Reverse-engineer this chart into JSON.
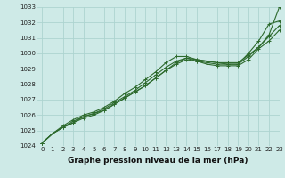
{
  "xlabel": "Graphe pression niveau de la mer (hPa)",
  "x": [
    0,
    1,
    2,
    3,
    4,
    5,
    6,
    7,
    8,
    9,
    10,
    11,
    12,
    13,
    14,
    15,
    16,
    17,
    18,
    19,
    20,
    21,
    22,
    23
  ],
  "series": [
    [
      1024.2,
      1024.8,
      1025.2,
      1025.5,
      1025.8,
      1026.0,
      1026.3,
      1026.7,
      1027.1,
      1027.5,
      1027.9,
      1028.4,
      1028.9,
      1029.4,
      1029.7,
      1029.6,
      1029.5,
      1029.4,
      1029.4,
      1029.4,
      1029.9,
      1030.4,
      1031.2,
      1033.0
    ],
    [
      1024.2,
      1024.8,
      1025.3,
      1025.7,
      1026.0,
      1026.2,
      1026.5,
      1026.9,
      1027.4,
      1027.8,
      1028.3,
      1028.8,
      1029.4,
      1029.8,
      1029.8,
      1029.6,
      1029.5,
      1029.4,
      1029.3,
      1029.3,
      1030.0,
      1030.8,
      1031.9,
      1032.1
    ],
    [
      1024.2,
      1024.8,
      1025.2,
      1025.6,
      1025.9,
      1026.1,
      1026.4,
      1026.8,
      1027.2,
      1027.6,
      1028.1,
      1028.6,
      1029.1,
      1029.5,
      1029.7,
      1029.5,
      1029.4,
      1029.3,
      1029.3,
      1029.3,
      1029.8,
      1030.4,
      1031.1,
      1031.8
    ],
    [
      1024.2,
      1024.8,
      1025.2,
      1025.5,
      1025.9,
      1026.1,
      1026.3,
      1026.7,
      1027.1,
      1027.5,
      1027.9,
      1028.4,
      1028.9,
      1029.3,
      1029.6,
      1029.5,
      1029.3,
      1029.2,
      1029.2,
      1029.2,
      1029.6,
      1030.3,
      1030.8,
      1031.5
    ]
  ],
  "line_color": "#2d6a2d",
  "marker": "+",
  "markersize": 3.5,
  "linewidth": 0.8,
  "bg_color": "#ceeae7",
  "grid_color": "#add4d0",
  "ylim": [
    1024,
    1033
  ],
  "xlim": [
    -0.5,
    23
  ],
  "yticks": [
    1024,
    1025,
    1026,
    1027,
    1028,
    1029,
    1030,
    1031,
    1032,
    1033
  ],
  "xticks": [
    0,
    1,
    2,
    3,
    4,
    5,
    6,
    7,
    8,
    9,
    10,
    11,
    12,
    13,
    14,
    15,
    16,
    17,
    18,
    19,
    20,
    21,
    22,
    23
  ],
  "tick_fontsize": 5.0,
  "xlabel_fontsize": 6.5,
  "xlabel_bold": true
}
